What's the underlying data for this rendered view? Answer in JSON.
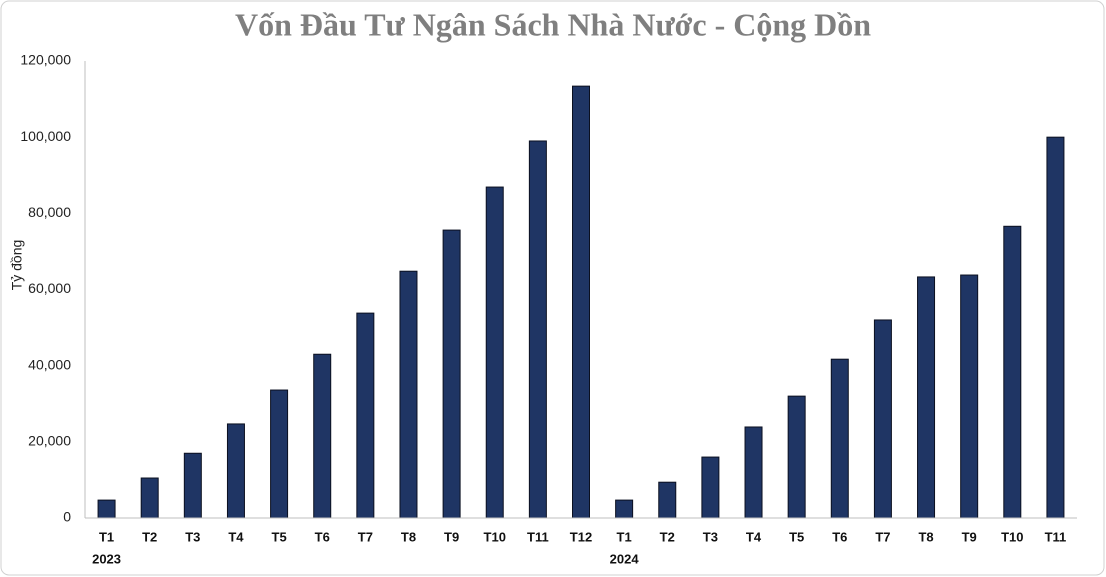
{
  "chart_data": {
    "type": "bar",
    "title": "Vốn Đầu Tư Ngân Sách Nhà Nước - Cộng Dồn",
    "y_label": "Tỷ đồng",
    "categories": [
      "T1",
      "T2",
      "T3",
      "T4",
      "T5",
      "T6",
      "T7",
      "T8",
      "T9",
      "T10",
      "T11",
      "T12",
      "T1",
      "T2",
      "T3",
      "T4",
      "T5",
      "T6",
      "T7",
      "T8",
      "T9",
      "T10",
      "T11"
    ],
    "year_labels": [
      "2023",
      null,
      null,
      null,
      null,
      null,
      null,
      null,
      null,
      null,
      null,
      null,
      "2024",
      null,
      null,
      null,
      null,
      null,
      null,
      null,
      null,
      null,
      null
    ],
    "values": [
      4700,
      10500,
      17000,
      24700,
      33600,
      43000,
      53800,
      64800,
      75600,
      86900,
      99000,
      113400,
      4700,
      9400,
      16000,
      23900,
      32000,
      41700,
      52000,
      63300,
      63800,
      76600,
      100000
    ],
    "color": "#1f3564",
    "ylim": [
      0,
      120000
    ],
    "yticks": [
      0,
      {
        "value": 20000,
        "label": "20,000"
      },
      {
        "value": 40000,
        "label": "40,000"
      },
      {
        "value": 60000,
        "label": "60,000"
      },
      {
        "value": 80000,
        "label": "80,000"
      },
      {
        "value": 100000,
        "label": "100,000"
      },
      {
        "value": 120000,
        "label": "120,000"
      }
    ],
    "grid": false
  }
}
